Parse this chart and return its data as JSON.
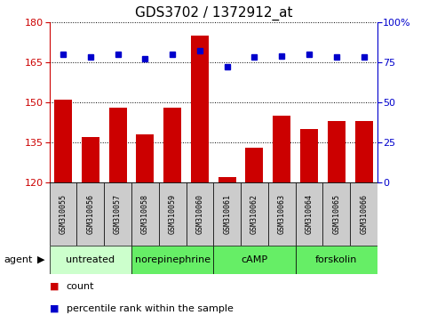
{
  "title": "GDS3702 / 1372912_at",
  "samples": [
    "GSM310055",
    "GSM310056",
    "GSM310057",
    "GSM310058",
    "GSM310059",
    "GSM310060",
    "GSM310061",
    "GSM310062",
    "GSM310063",
    "GSM310064",
    "GSM310065",
    "GSM310066"
  ],
  "counts": [
    151,
    137,
    148,
    138,
    148,
    175,
    122,
    133,
    145,
    140,
    143,
    143
  ],
  "percentile_ranks": [
    80,
    78,
    80,
    77,
    80,
    82,
    72,
    78,
    79,
    80,
    78,
    78
  ],
  "ylim_left": [
    120,
    180
  ],
  "ylim_right": [
    0,
    100
  ],
  "yticks_left": [
    120,
    135,
    150,
    165,
    180
  ],
  "yticks_right": [
    0,
    25,
    50,
    75,
    100
  ],
  "bar_color": "#cc0000",
  "dot_color": "#0000cc",
  "groups": [
    {
      "label": "untreated",
      "start": 0,
      "end": 3
    },
    {
      "label": "norepinephrine",
      "start": 3,
      "end": 6
    },
    {
      "label": "cAMP",
      "start": 6,
      "end": 9
    },
    {
      "label": "forskolin",
      "start": 9,
      "end": 12
    }
  ],
  "group_color_light": "#ccffcc",
  "group_color_bright": "#66ee66",
  "agent_label": "agent",
  "legend_count_label": "count",
  "legend_pct_label": "percentile rank within the sample",
  "background_color": "#ffffff",
  "sample_bg_color": "#cccccc",
  "title_fontsize": 11,
  "tick_fontsize": 8,
  "sample_fontsize": 6,
  "group_fontsize": 8,
  "legend_fontsize": 8
}
